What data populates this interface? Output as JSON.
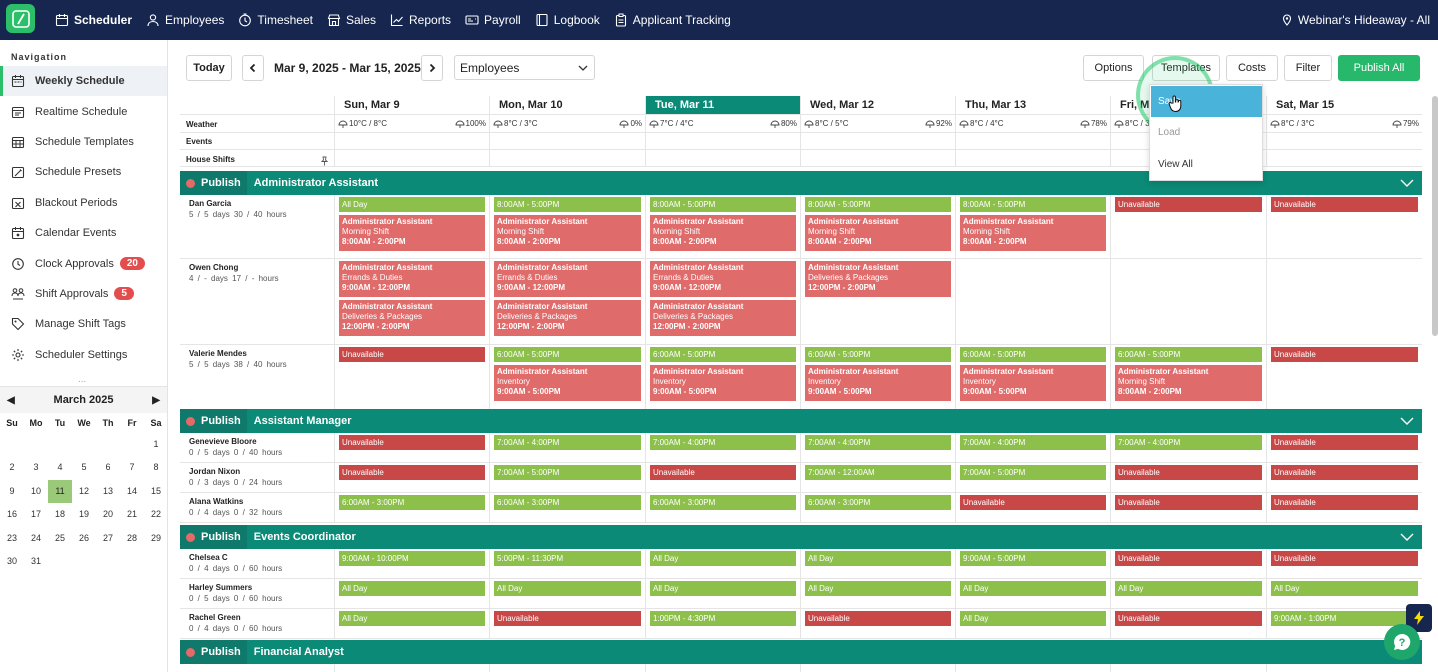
{
  "nav": {
    "items": [
      {
        "label": "Scheduler",
        "icon": "calendar-icon",
        "active": true
      },
      {
        "label": "Employees",
        "icon": "user-icon"
      },
      {
        "label": "Timesheet",
        "icon": "clock-icon"
      },
      {
        "label": "Sales",
        "icon": "store-icon"
      },
      {
        "label": "Reports",
        "icon": "chart-icon"
      },
      {
        "label": "Payroll",
        "icon": "payroll-icon"
      },
      {
        "label": "Logbook",
        "icon": "book-icon"
      },
      {
        "label": "Applicant Tracking",
        "icon": "clipboard-icon"
      }
    ],
    "location": "Webinar's Hideaway - All"
  },
  "sidebar": {
    "title": "Navigation",
    "items": [
      {
        "label": "Weekly Schedule",
        "active": true
      },
      {
        "label": "Realtime Schedule"
      },
      {
        "label": "Schedule Templates"
      },
      {
        "label": "Schedule Presets"
      },
      {
        "label": "Blackout Periods"
      },
      {
        "label": "Calendar Events"
      },
      {
        "label": "Clock Approvals",
        "badge": "20"
      },
      {
        "label": "Shift Approvals",
        "badge": "5"
      },
      {
        "label": "Manage Shift Tags"
      },
      {
        "label": "Scheduler Settings"
      }
    ],
    "dots": "...",
    "calendar": {
      "month": "March 2025",
      "prev": "◀",
      "next": "▶",
      "dow": [
        "Su",
        "Mo",
        "Tu",
        "We",
        "Th",
        "Fr",
        "Sa"
      ],
      "days": [
        "",
        "",
        "",
        "",
        "",
        "",
        "1",
        "2",
        "3",
        "4",
        "5",
        "6",
        "7",
        "8",
        "9",
        "10",
        "11",
        "12",
        "13",
        "14",
        "15",
        "16",
        "17",
        "18",
        "19",
        "20",
        "21",
        "22",
        "23",
        "24",
        "25",
        "26",
        "27",
        "28",
        "29",
        "30",
        "31"
      ],
      "selected": "11"
    }
  },
  "toolbar": {
    "today": "Today",
    "range": "Mar 9, 2025 - Mar 15, 2025",
    "view": "Employees",
    "options": "Options",
    "templates": "Templates",
    "costs": "Costs",
    "filter": "Filter",
    "publish_all": "Publish All"
  },
  "dropdown": {
    "save": "Save",
    "load": "Load",
    "view_all": "View All"
  },
  "days": [
    "Sun, Mar 9",
    "Mon, Mar 10",
    "Tue, Mar 11",
    "Wed, Mar 12",
    "Thu, Mar 13",
    "Fri, Mar 14",
    "Sat, Mar 15"
  ],
  "rows": {
    "weather": "Weather",
    "events": "Events",
    "house": "House Shifts"
  },
  "weather": [
    {
      "temp": "10°C / 8°C",
      "rain": "100%"
    },
    {
      "temp": "8°C / 3°C",
      "rain": "0%"
    },
    {
      "temp": "7°C / 4°C",
      "rain": "80%"
    },
    {
      "temp": "8°C / 5°C",
      "rain": "92%"
    },
    {
      "temp": "8°C / 4°C",
      "rain": "78%"
    },
    {
      "temp": "8°C / 3°C",
      "rain": ""
    },
    {
      "temp": "8°C / 3°C",
      "rain": "79%"
    }
  ],
  "publish": "Publish",
  "groups": [
    {
      "name": "Administrator Assistant",
      "employees": [
        {
          "name": "Dan Garcia",
          "days": "5 / 5 days",
          "hours": "30 / 40 hours",
          "cells": [
            [
              {
                "t": "All Day",
                "k": "g"
              },
              {
                "c": [
                  "Administrator Assistant",
                  "Morning Shift",
                  "8:00AM - 2:00PM"
                ]
              }
            ],
            [
              {
                "t": "8:00AM - 5:00PM",
                "k": "g"
              },
              {
                "c": [
                  "Administrator Assistant",
                  "Morning Shift",
                  "8:00AM - 2:00PM"
                ]
              }
            ],
            [
              {
                "t": "8:00AM - 5:00PM",
                "k": "g"
              },
              {
                "c": [
                  "Administrator Assistant",
                  "Morning Shift",
                  "8:00AM - 2:00PM"
                ]
              }
            ],
            [
              {
                "t": "8:00AM - 5:00PM",
                "k": "g"
              },
              {
                "c": [
                  "Administrator Assistant",
                  "Morning Shift",
                  "8:00AM - 2:00PM"
                ]
              }
            ],
            [
              {
                "t": "8:00AM - 5:00PM",
                "k": "g"
              },
              {
                "c": [
                  "Administrator Assistant",
                  "Morning Shift",
                  "8:00AM - 2:00PM"
                ]
              }
            ],
            [
              {
                "t": "Unavailable",
                "k": "u"
              }
            ],
            [
              {
                "t": "Unavailable",
                "k": "u"
              }
            ]
          ]
        },
        {
          "name": "Owen Chong",
          "days": "4 / - days",
          "hours": "17 / - hours",
          "cells": [
            [
              {
                "c": [
                  "Administrator Assistant",
                  "Errands & Duties",
                  "9:00AM - 12:00PM"
                ]
              },
              {
                "c": [
                  "Administrator Assistant",
                  "Deliveries & Packages",
                  "12:00PM - 2:00PM"
                ]
              }
            ],
            [
              {
                "c": [
                  "Administrator Assistant",
                  "Errands & Duties",
                  "9:00AM - 12:00PM"
                ]
              },
              {
                "c": [
                  "Administrator Assistant",
                  "Deliveries & Packages",
                  "12:00PM - 2:00PM"
                ]
              }
            ],
            [
              {
                "c": [
                  "Administrator Assistant",
                  "Errands & Duties",
                  "9:00AM - 12:00PM"
                ]
              },
              {
                "c": [
                  "Administrator Assistant",
                  "Deliveries & Packages",
                  "12:00PM - 2:00PM"
                ]
              }
            ],
            [
              {
                "c": [
                  "Administrator Assistant",
                  "Deliveries & Packages",
                  "12:00PM - 2:00PM"
                ]
              }
            ],
            [],
            [],
            []
          ]
        },
        {
          "name": "Valerie Mendes",
          "days": "5 / 5 days",
          "hours": "38 / 40 hours",
          "cells": [
            [
              {
                "t": "Unavailable",
                "k": "u"
              }
            ],
            [
              {
                "t": "6:00AM - 5:00PM",
                "k": "g"
              },
              {
                "c": [
                  "Administrator Assistant",
                  "Inventory",
                  "9:00AM - 5:00PM"
                ]
              }
            ],
            [
              {
                "t": "6:00AM - 5:00PM",
                "k": "g"
              },
              {
                "c": [
                  "Administrator Assistant",
                  "Inventory",
                  "9:00AM - 5:00PM"
                ]
              }
            ],
            [
              {
                "t": "6:00AM - 5:00PM",
                "k": "g"
              },
              {
                "c": [
                  "Administrator Assistant",
                  "Inventory",
                  "9:00AM - 5:00PM"
                ]
              }
            ],
            [
              {
                "t": "6:00AM - 5:00PM",
                "k": "g"
              },
              {
                "c": [
                  "Administrator Assistant",
                  "Inventory",
                  "9:00AM - 5:00PM"
                ]
              }
            ],
            [
              {
                "t": "6:00AM - 5:00PM",
                "k": "g"
              },
              {
                "c": [
                  "Administrator Assistant",
                  "Morning Shift",
                  "8:00AM - 2:00PM"
                ]
              }
            ],
            [
              {
                "t": "Unavailable",
                "k": "u"
              }
            ]
          ]
        }
      ]
    },
    {
      "name": "Assistant Manager",
      "employees": [
        {
          "name": "Genevieve Bloore",
          "days": "0 / 5 days",
          "hours": "0 / 40 hours",
          "cells": [
            [
              {
                "t": "Unavailable",
                "k": "u"
              }
            ],
            [
              {
                "t": "7:00AM - 4:00PM",
                "k": "g"
              }
            ],
            [
              {
                "t": "7:00AM - 4:00PM",
                "k": "g"
              }
            ],
            [
              {
                "t": "7:00AM - 4:00PM",
                "k": "g"
              }
            ],
            [
              {
                "t": "7:00AM - 4:00PM",
                "k": "g"
              }
            ],
            [
              {
                "t": "7:00AM - 4:00PM",
                "k": "g"
              }
            ],
            [
              {
                "t": "Unavailable",
                "k": "u"
              }
            ]
          ]
        },
        {
          "name": "Jordan Nixon",
          "days": "0 / 3 days",
          "hours": "0 / 24 hours",
          "cells": [
            [
              {
                "t": "Unavailable",
                "k": "u"
              }
            ],
            [
              {
                "t": "7:00AM - 5:00PM",
                "k": "g"
              }
            ],
            [
              {
                "t": "Unavailable",
                "k": "u"
              }
            ],
            [
              {
                "t": "7:00AM - 12:00AM",
                "k": "g"
              }
            ],
            [
              {
                "t": "7:00AM - 5:00PM",
                "k": "g"
              }
            ],
            [
              {
                "t": "Unavailable",
                "k": "u"
              }
            ],
            [
              {
                "t": "Unavailable",
                "k": "u"
              }
            ]
          ]
        },
        {
          "name": "Alana Watkins",
          "days": "0 / 4 days",
          "hours": "0 / 32 hours",
          "cells": [
            [
              {
                "t": "6:00AM - 3:00PM",
                "k": "g"
              }
            ],
            [
              {
                "t": "6:00AM - 3:00PM",
                "k": "g"
              }
            ],
            [
              {
                "t": "6:00AM - 3:00PM",
                "k": "g"
              }
            ],
            [
              {
                "t": "6:00AM - 3:00PM",
                "k": "g"
              }
            ],
            [
              {
                "t": "Unavailable",
                "k": "u"
              }
            ],
            [
              {
                "t": "Unavailable",
                "k": "u"
              }
            ],
            [
              {
                "t": "Unavailable",
                "k": "u"
              }
            ]
          ]
        }
      ]
    },
    {
      "name": "Events Coordinator",
      "employees": [
        {
          "name": "Chelsea C",
          "days": "0 / 4 days",
          "hours": "0 / 60 hours",
          "cells": [
            [
              {
                "t": "9:00AM - 10:00PM",
                "k": "g"
              }
            ],
            [
              {
                "t": "5:00PM - 11:30PM",
                "k": "g"
              }
            ],
            [
              {
                "t": "All Day",
                "k": "g"
              }
            ],
            [
              {
                "t": "All Day",
                "k": "g"
              }
            ],
            [
              {
                "t": "9:00AM - 5:00PM",
                "k": "g"
              }
            ],
            [
              {
                "t": "Unavailable",
                "k": "u"
              }
            ],
            [
              {
                "t": "Unavailable",
                "k": "u"
              }
            ]
          ]
        },
        {
          "name": "Harley Summers",
          "days": "0 / 5 days",
          "hours": "0 / 60 hours",
          "cells": [
            [
              {
                "t": "All Day",
                "k": "g"
              }
            ],
            [
              {
                "t": "All Day",
                "k": "g"
              }
            ],
            [
              {
                "t": "All Day",
                "k": "g"
              }
            ],
            [
              {
                "t": "All Day",
                "k": "g"
              }
            ],
            [
              {
                "t": "All Day",
                "k": "g"
              }
            ],
            [
              {
                "t": "All Day",
                "k": "g"
              }
            ],
            [
              {
                "t": "All Day",
                "k": "g"
              }
            ]
          ]
        },
        {
          "name": "Rachel Green",
          "days": "0 / 4 days",
          "hours": "0 / 60 hours",
          "cells": [
            [
              {
                "t": "All Day",
                "k": "g"
              }
            ],
            [
              {
                "t": "Unavailable",
                "k": "u"
              }
            ],
            [
              {
                "t": "1:00PM - 4:30PM",
                "k": "g"
              }
            ],
            [
              {
                "t": "Unavailable",
                "k": "u"
              }
            ],
            [
              {
                "t": "All Day",
                "k": "g"
              }
            ],
            [
              {
                "t": "Unavailable",
                "k": "u"
              }
            ],
            [
              {
                "t": "9:00AM - 1:00PM",
                "k": "g"
              }
            ]
          ]
        }
      ]
    },
    {
      "name": "Financial Analyst",
      "employees": []
    }
  ]
}
